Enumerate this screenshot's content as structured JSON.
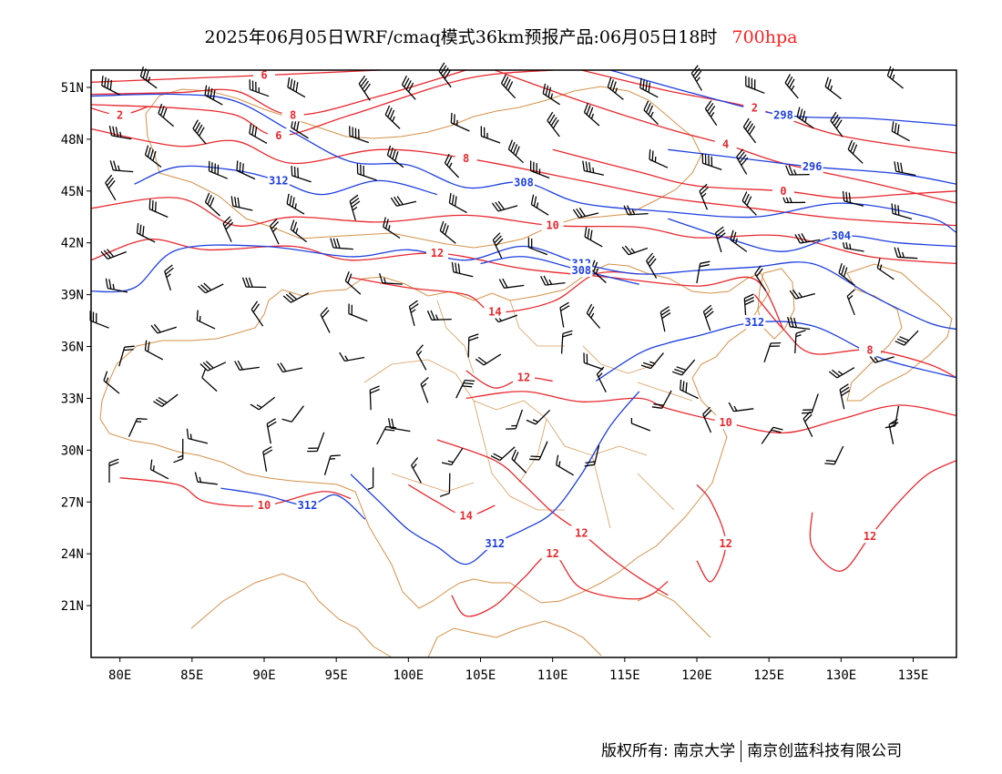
{
  "title": {
    "main": "2025年06月05日WRF/cmaq模式36km预报产品:06月05日18时",
    "level": "700hpa"
  },
  "colors": {
    "temperature_contour": "#e8282e",
    "height_contour": "#1e3fe0",
    "boundary": "#d4914a",
    "wind_barb": "#000000",
    "frame": "#000000"
  },
  "map": {
    "lon_range": [
      78,
      138
    ],
    "lat_range": [
      18,
      52
    ],
    "lat_ticks": [
      {
        "value": 51,
        "label": "51N"
      },
      {
        "value": 48,
        "label": "48N"
      },
      {
        "value": 45,
        "label": "45N"
      },
      {
        "value": 42,
        "label": "42N"
      },
      {
        "value": 39,
        "label": "39N"
      },
      {
        "value": 36,
        "label": "36N"
      },
      {
        "value": 33,
        "label": "33N"
      },
      {
        "value": 30,
        "label": "30N"
      },
      {
        "value": 27,
        "label": "27N"
      },
      {
        "value": 24,
        "label": "24N"
      },
      {
        "value": 21,
        "label": "21N"
      }
    ],
    "lon_ticks": [
      {
        "value": 80,
        "label": "80E"
      },
      {
        "value": 85,
        "label": "85E"
      },
      {
        "value": 90,
        "label": "90E"
      },
      {
        "value": 95,
        "label": "95E"
      },
      {
        "value": 100,
        "label": "100E"
      },
      {
        "value": 105,
        "label": "105E"
      },
      {
        "value": 110,
        "label": "110E"
      },
      {
        "value": 115,
        "label": "115E"
      },
      {
        "value": 120,
        "label": "120E"
      },
      {
        "value": 125,
        "label": "125E"
      },
      {
        "value": 130,
        "label": "130E"
      },
      {
        "value": 135,
        "label": "135E"
      }
    ],
    "temperature_contours": [
      {
        "label": "6",
        "points": [
          [
            78,
            51.3
          ],
          [
            84,
            51.5
          ],
          [
            90,
            51.7
          ],
          [
            98,
            52
          ]
        ]
      },
      {
        "label": "8",
        "points": [
          [
            78,
            50.6
          ],
          [
            84,
            50.7
          ],
          [
            88,
            50.8
          ],
          [
            92,
            49.4
          ],
          [
            98,
            50.5
          ],
          [
            104,
            52
          ]
        ]
      },
      {
        "label": "6",
        "points": [
          [
            78,
            50.0
          ],
          [
            84,
            49.8
          ],
          [
            88,
            49.4
          ],
          [
            91,
            48.2
          ],
          [
            96,
            49.4
          ],
          [
            104,
            51.5
          ],
          [
            110,
            52
          ]
        ]
      },
      {
        "label": "2",
        "points": [
          [
            78,
            49.8
          ],
          [
            80,
            49.4
          ],
          [
            82,
            49.9
          ]
        ]
      },
      {
        "label": "8",
        "points": [
          [
            78,
            48.6
          ],
          [
            84,
            47.6
          ],
          [
            88,
            47.9
          ],
          [
            92,
            46.6
          ],
          [
            98,
            47.4
          ],
          [
            104,
            46.9
          ],
          [
            112,
            45.6
          ],
          [
            118,
            44.6
          ],
          [
            124,
            44.0
          ],
          [
            130,
            43.4
          ],
          [
            138,
            43.0
          ]
        ]
      },
      {
        "label": "10",
        "points": [
          [
            78,
            44.0
          ],
          [
            84,
            44.6
          ],
          [
            88,
            43.0
          ],
          [
            92,
            43.5
          ],
          [
            98,
            43.2
          ],
          [
            104,
            43.6
          ],
          [
            110,
            43.0
          ],
          [
            116,
            42.9
          ],
          [
            120,
            42.3
          ],
          [
            126,
            42.4
          ],
          [
            132,
            41.2
          ],
          [
            138,
            40.8
          ]
        ]
      },
      {
        "label": "12",
        "points": [
          [
            78,
            41.0
          ],
          [
            82,
            42.2
          ],
          [
            86,
            41.6
          ],
          [
            92,
            41.8
          ],
          [
            96,
            41.0
          ],
          [
            102,
            41.4
          ],
          [
            108,
            40.5
          ],
          [
            114,
            40.0
          ],
          [
            120,
            39.5
          ],
          [
            124,
            39.9
          ],
          [
            126,
            37.0
          ]
        ]
      },
      {
        "label": "14",
        "points": [
          [
            96,
            40.0
          ],
          [
            100,
            39.4
          ],
          [
            104,
            39.0
          ],
          [
            106,
            38.0
          ],
          [
            110,
            38.6
          ],
          [
            113,
            40.2
          ],
          [
            116,
            40.2
          ]
        ]
      },
      {
        "label": "4",
        "points": [
          [
            106,
            52
          ],
          [
            112,
            50.2
          ],
          [
            118,
            48.6
          ],
          [
            122,
            47.7
          ],
          [
            126,
            46.6
          ],
          [
            132,
            45.5
          ],
          [
            138,
            44.3
          ]
        ]
      },
      {
        "label": "2",
        "points": [
          [
            112,
            52
          ],
          [
            118,
            50.8
          ],
          [
            124,
            49.8
          ],
          [
            130,
            48.2
          ],
          [
            138,
            47.2
          ]
        ]
      },
      {
        "label": "0",
        "points": [
          [
            110,
            47.4
          ],
          [
            116,
            46.1
          ],
          [
            120,
            45.3
          ],
          [
            126,
            45.0
          ],
          [
            130,
            44.6
          ],
          [
            134,
            44.8
          ],
          [
            138,
            45.0
          ]
        ]
      },
      {
        "label": "8",
        "points": [
          [
            124,
            39.0
          ],
          [
            126,
            37.0
          ],
          [
            128,
            35.6
          ],
          [
            132,
            35.8
          ],
          [
            136,
            35.0
          ],
          [
            138,
            34.2
          ]
        ]
      },
      {
        "label": "10",
        "points": [
          [
            104,
            33.0
          ],
          [
            108,
            33.4
          ],
          [
            112,
            32.8
          ],
          [
            116,
            33.0
          ],
          [
            118,
            32.4
          ],
          [
            122,
            31.6
          ],
          [
            126,
            31.0
          ],
          [
            130,
            31.8
          ],
          [
            134,
            32.6
          ],
          [
            138,
            32.0
          ]
        ]
      },
      {
        "label": "12",
        "points": [
          [
            104,
            34.6
          ],
          [
            106,
            33.6
          ],
          [
            108,
            34.2
          ],
          [
            110,
            34.0
          ]
        ]
      },
      {
        "label": "10",
        "points": [
          [
            80,
            28.4
          ],
          [
            84,
            28.0
          ],
          [
            86,
            27.0
          ],
          [
            90,
            26.8
          ],
          [
            94,
            27.6
          ],
          [
            96,
            27.2
          ]
        ]
      },
      {
        "label": "14",
        "points": [
          [
            100,
            28.0
          ],
          [
            102,
            27.0
          ],
          [
            104,
            26.2
          ],
          [
            106,
            26.8
          ]
        ]
      },
      {
        "label": "12",
        "points": [
          [
            102,
            30.6
          ],
          [
            106,
            29.4
          ],
          [
            108,
            28.0
          ],
          [
            110,
            26.4
          ],
          [
            112,
            25.2
          ],
          [
            114,
            23.8
          ],
          [
            116,
            22.6
          ],
          [
            118,
            21.6
          ]
        ]
      },
      {
        "label": "12",
        "points": [
          [
            103,
            21.6
          ],
          [
            104,
            20.4
          ],
          [
            106,
            21.0
          ],
          [
            108,
            22.6
          ],
          [
            110,
            24.0
          ],
          [
            112,
            22.0
          ],
          [
            116,
            21.4
          ],
          [
            118,
            22.4
          ]
        ]
      },
      {
        "label": "12",
        "points": [
          [
            120,
            23.6
          ],
          [
            121,
            22.4
          ],
          [
            122,
            24.6
          ],
          [
            121,
            27.0
          ],
          [
            120,
            28.0
          ]
        ]
      },
      {
        "label": "12",
        "points": [
          [
            128,
            26.4
          ],
          [
            128,
            24.4
          ],
          [
            130,
            23.0
          ],
          [
            132,
            25.0
          ],
          [
            134,
            27.0
          ],
          [
            136,
            28.6
          ],
          [
            138,
            29.4
          ]
        ]
      }
    ],
    "height_contours": [
      {
        "label": "308",
        "points": [
          [
            78,
            50.5
          ],
          [
            84,
            50.6
          ],
          [
            88,
            50.2
          ],
          [
            92,
            48.4
          ],
          [
            96,
            46.7
          ],
          [
            100,
            46.5
          ],
          [
            104,
            45.2
          ],
          [
            108,
            45.5
          ],
          [
            112,
            44.3
          ],
          [
            118,
            43.8
          ],
          [
            124,
            43.5
          ],
          [
            130,
            44.3
          ],
          [
            136,
            43.5
          ],
          [
            138,
            42.6
          ]
        ]
      },
      {
        "label": "304",
        "points": [
          [
            118,
            43.4
          ],
          [
            122,
            42.3
          ],
          [
            126,
            41.5
          ],
          [
            130,
            42.4
          ],
          [
            134,
            42.0
          ],
          [
            138,
            41.8
          ]
        ]
      },
      {
        "label": "312",
        "points": [
          [
            78,
            39.2
          ],
          [
            81,
            39.4
          ],
          [
            84,
            41.6
          ],
          [
            90,
            41.8
          ],
          [
            96,
            41.2
          ],
          [
            100,
            41.6
          ],
          [
            104,
            41.0
          ],
          [
            108,
            41.8
          ],
          [
            112,
            40.8
          ],
          [
            116,
            40.2
          ],
          [
            120,
            40.4
          ],
          [
            124,
            40.6
          ],
          [
            128,
            40.8
          ],
          [
            132,
            39.0
          ],
          [
            136,
            37.4
          ],
          [
            138,
            37.0
          ]
        ]
      },
      {
        "label": "312",
        "points": [
          [
            81,
            45.4
          ],
          [
            84,
            46.4
          ],
          [
            88,
            46.2
          ],
          [
            91,
            45.6
          ],
          [
            94,
            44.8
          ],
          [
            98,
            45.6
          ],
          [
            102,
            44.8
          ]
        ]
      },
      {
        "label": "308",
        "points": [
          [
            105,
            40.8
          ],
          [
            108,
            41.2
          ],
          [
            112,
            40.4
          ],
          [
            116,
            39.6
          ]
        ]
      },
      {
        "label": "312",
        "points": [
          [
            113,
            34.0
          ],
          [
            116,
            35.6
          ],
          [
            118,
            36.2
          ],
          [
            120,
            36.6
          ],
          [
            124,
            37.4
          ],
          [
            128,
            37.2
          ],
          [
            132,
            35.6
          ],
          [
            134,
            35.0
          ],
          [
            138,
            34.2
          ]
        ]
      },
      {
        "label": "312",
        "points": [
          [
            96,
            28.6
          ],
          [
            98,
            27.0
          ],
          [
            100,
            25.4
          ],
          [
            102,
            24.4
          ],
          [
            104,
            23.4
          ],
          [
            106,
            24.6
          ],
          [
            108,
            25.4
          ],
          [
            110,
            26.4
          ],
          [
            112,
            28.6
          ],
          [
            114,
            31.4
          ],
          [
            116,
            33.4
          ]
        ]
      },
      {
        "label": "312",
        "points": [
          [
            87,
            27.8
          ],
          [
            90,
            27.4
          ],
          [
            93,
            26.8
          ],
          [
            95,
            27.4
          ],
          [
            97,
            26.0
          ]
        ]
      },
      {
        "label": "298",
        "points": [
          [
            114,
            52
          ],
          [
            120,
            50.6
          ],
          [
            126,
            49.4
          ],
          [
            132,
            49.2
          ],
          [
            138,
            48.8
          ]
        ]
      },
      {
        "label": "296",
        "points": [
          [
            118,
            47.4
          ],
          [
            124,
            46.8
          ],
          [
            128,
            46.4
          ],
          [
            134,
            46.0
          ],
          [
            138,
            45.4
          ]
        ]
      }
    ],
    "wind_barbs_count": 180
  },
  "copyright": {
    "left": "版权所有: 南京大学",
    "right": "南京创蓝科技有限公司"
  }
}
